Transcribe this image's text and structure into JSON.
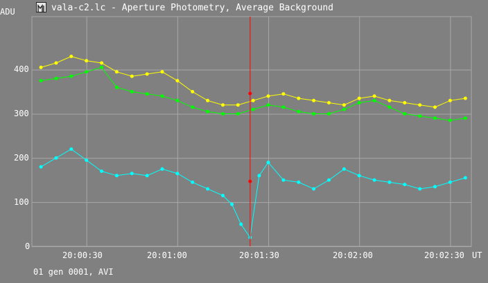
{
  "window": {
    "title": "vala-c2.lc - Aperture Photometry, Average Background",
    "status": "01 gen 0001, AVI"
  },
  "colors": {
    "background": "#808080",
    "grid": "#a8a8a8",
    "text": "#ffffff",
    "series1": "#ffff00",
    "series2": "#00ff00",
    "series3": "#00ffff",
    "cursor": "#ff0000"
  },
  "chart_data": {
    "type": "scatter",
    "y_unit": "ADU",
    "x_unit": "UT",
    "ylim": [
      0,
      520
    ],
    "xlim": [
      "20:00:12",
      "20:02:37"
    ],
    "y_ticks": [
      "0",
      "100",
      "200",
      "300",
      "400"
    ],
    "x_ticks": [
      "20:00:30",
      "20:01:00",
      "20:01:30",
      "20:02:00",
      "20:02:30"
    ],
    "grid": true,
    "cursor": {
      "x": "20:01:24",
      "markers_y": [
        346,
        147
      ]
    },
    "series": [
      {
        "color": "#ffff00",
        "x": [
          "20:00:15",
          "20:00:20",
          "20:00:25",
          "20:00:30",
          "20:00:35",
          "20:00:40",
          "20:00:45",
          "20:00:50",
          "20:00:55",
          "20:01:00",
          "20:01:05",
          "20:01:10",
          "20:01:15",
          "20:01:20",
          "20:01:25",
          "20:01:30",
          "20:01:35",
          "20:01:40",
          "20:01:45",
          "20:01:50",
          "20:01:55",
          "20:02:00",
          "20:02:05",
          "20:02:10",
          "20:02:15",
          "20:02:20",
          "20:02:25",
          "20:02:30",
          "20:02:35"
        ],
        "y": [
          405,
          415,
          430,
          420,
          415,
          395,
          385,
          390,
          395,
          375,
          350,
          330,
          320,
          320,
          330,
          340,
          345,
          335,
          330,
          325,
          320,
          335,
          340,
          330,
          325,
          320,
          315,
          330,
          335
        ]
      },
      {
        "color": "#00ff00",
        "x": [
          "20:00:15",
          "20:00:20",
          "20:00:25",
          "20:00:30",
          "20:00:35",
          "20:00:40",
          "20:00:45",
          "20:00:50",
          "20:00:55",
          "20:01:00",
          "20:01:05",
          "20:01:10",
          "20:01:15",
          "20:01:20",
          "20:01:25",
          "20:01:30",
          "20:01:35",
          "20:01:40",
          "20:01:45",
          "20:01:50",
          "20:01:55",
          "20:02:00",
          "20:02:05",
          "20:02:10",
          "20:02:15",
          "20:02:20",
          "20:02:25",
          "20:02:30",
          "20:02:35"
        ],
        "y": [
          375,
          380,
          385,
          395,
          405,
          360,
          350,
          345,
          340,
          330,
          315,
          305,
          300,
          300,
          310,
          320,
          315,
          305,
          300,
          300,
          310,
          325,
          330,
          315,
          300,
          295,
          290,
          285,
          290
        ]
      },
      {
        "color": "#00ffff",
        "x": [
          "20:00:15",
          "20:00:20",
          "20:00:25",
          "20:00:30",
          "20:00:35",
          "20:00:40",
          "20:00:45",
          "20:00:50",
          "20:00:55",
          "20:01:00",
          "20:01:05",
          "20:01:10",
          "20:01:15",
          "20:01:18",
          "20:01:21",
          "20:01:24",
          "20:01:27",
          "20:01:30",
          "20:01:35",
          "20:01:40",
          "20:01:45",
          "20:01:50",
          "20:01:55",
          "20:02:00",
          "20:02:05",
          "20:02:10",
          "20:02:15",
          "20:02:20",
          "20:02:25",
          "20:02:30",
          "20:02:35"
        ],
        "y": [
          180,
          200,
          220,
          195,
          170,
          160,
          165,
          160,
          175,
          165,
          145,
          130,
          115,
          95,
          50,
          20,
          160,
          190,
          150,
          145,
          130,
          150,
          175,
          160,
          150,
          145,
          140,
          130,
          135,
          145,
          155
        ]
      }
    ]
  }
}
